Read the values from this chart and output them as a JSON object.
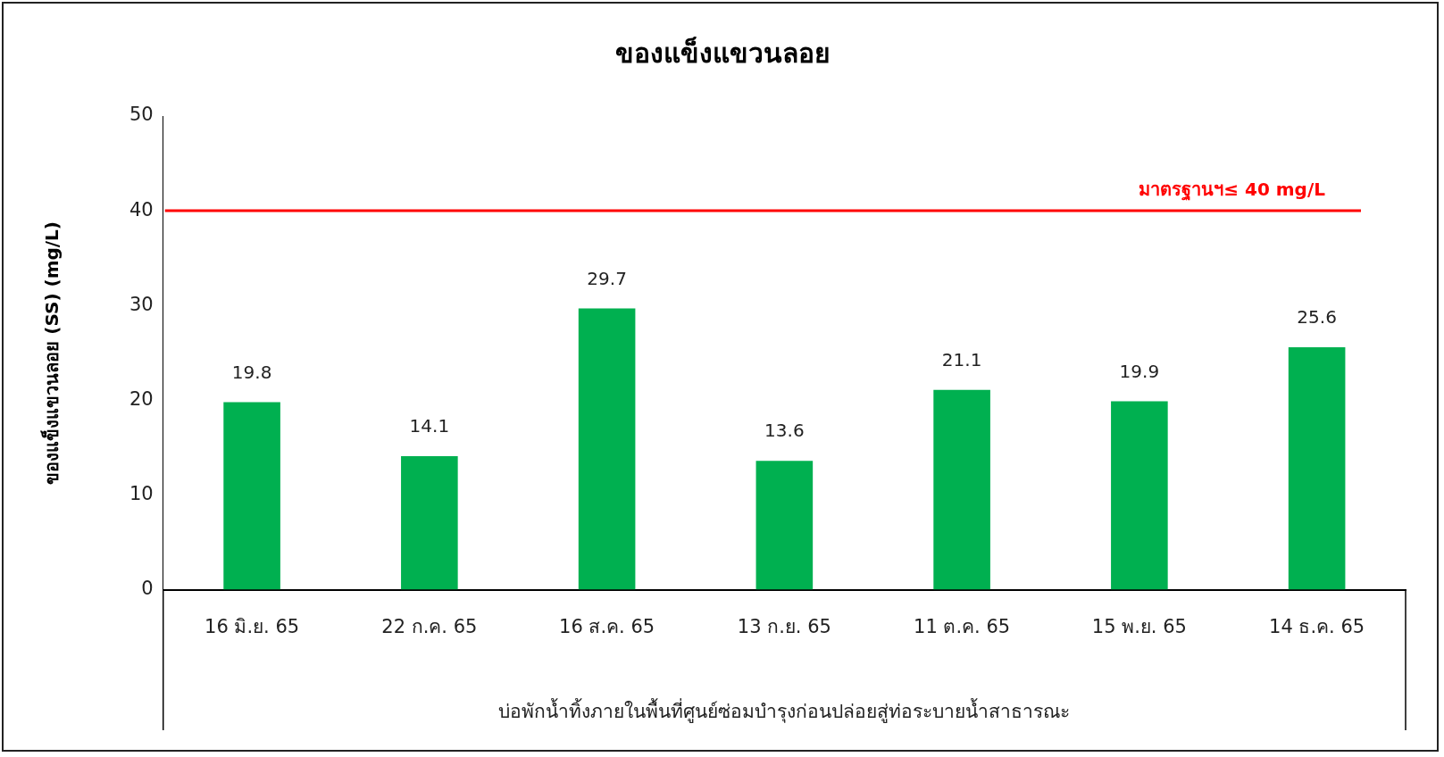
{
  "chart_data": {
    "type": "bar",
    "title": "ของแข็งแขวนลอย",
    "xlabel": "บ่อพักน้ำทิ้งภายในพื้นที่ศูนย์ซ่อมบำรุงก่อนปล่อยสู่ท่อระบายน้ำสาธารณะ",
    "ylabel": "ของแข็งแขวนลอย (SS) (mg/L)",
    "categories": [
      "16 มิ.ย. 65",
      "22 ก.ค. 65",
      "16 ส.ค. 65",
      "13 ก.ย. 65",
      "11 ต.ค. 65",
      "15 พ.ย. 65",
      "14 ธ.ค. 65"
    ],
    "values": [
      19.8,
      14.1,
      29.7,
      13.6,
      21.1,
      19.9,
      25.6
    ],
    "color": "#00b050",
    "ylim": [
      0,
      50
    ],
    "yticks": [
      0,
      10,
      20,
      30,
      40,
      50
    ],
    "ref_lines": [
      {
        "axis": "y",
        "value": 40,
        "label": "มาตรฐานฯ≤ 40 mg/L",
        "color": "#ff0000"
      }
    ],
    "data_labels": true,
    "grid": false,
    "legend": false
  }
}
